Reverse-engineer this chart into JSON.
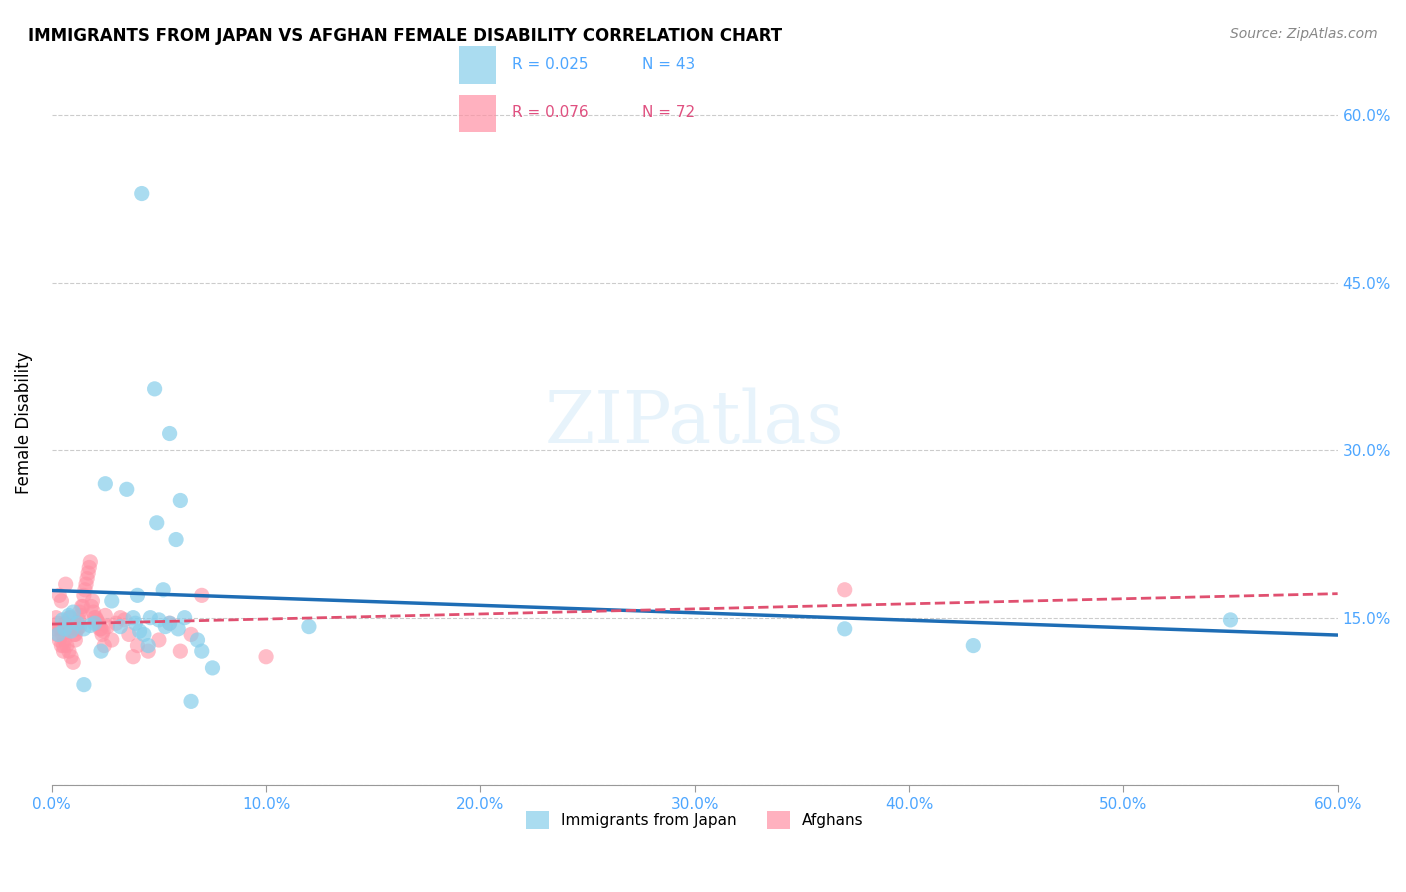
{
  "title": "IMMIGRANTS FROM JAPAN VS AFGHAN FEMALE DISABILITY CORRELATION CHART",
  "source": "Source: ZipAtlas.com",
  "xlabel_ticks": [
    "0.0%",
    "10.0%",
    "20.0%",
    "30.0%",
    "40.0%",
    "50.0%",
    "60.0%"
  ],
  "xlabel_vals": [
    0,
    10,
    20,
    30,
    40,
    50,
    60
  ],
  "ylabel": "Female Disability",
  "ylim": [
    0,
    65
  ],
  "xlim": [
    0,
    60
  ],
  "yticks": [
    0,
    15,
    30,
    45,
    60
  ],
  "ytick_labels": [
    "",
    "15.0%",
    "30.0%",
    "45.0%",
    "60.0%"
  ],
  "legend1_r": "0.025",
  "legend1_n": "43",
  "legend2_r": "0.076",
  "legend2_n": "72",
  "color_blue": "#87CEEB",
  "color_pink": "#FF91A4",
  "color_blue_line": "#1E6DB5",
  "color_pink_line": "#E05070",
  "watermark": "ZIPatlas",
  "japan_x": [
    4.2,
    4.8,
    5.5,
    6.0,
    3.5,
    4.9,
    5.8,
    2.5,
    5.2,
    4.0,
    3.8,
    5.5,
    5.9,
    4.3,
    6.8,
    1.5,
    4.5,
    5.0,
    2.8,
    3.2,
    4.1,
    5.3,
    0.5,
    0.8,
    1.0,
    1.2,
    1.5,
    0.3,
    0.6,
    0.9,
    1.8,
    2.0,
    2.3,
    6.2,
    7.0,
    7.5,
    12.0,
    37.0,
    43.0,
    55.0,
    4.6,
    3.9,
    6.5
  ],
  "japan_y": [
    53.0,
    35.5,
    31.5,
    25.5,
    26.5,
    23.5,
    22.0,
    27.0,
    17.5,
    17.0,
    15.0,
    14.5,
    14.0,
    13.5,
    13.0,
    9.0,
    12.5,
    14.8,
    16.5,
    14.2,
    13.8,
    14.2,
    14.8,
    15.2,
    15.5,
    14.5,
    14.0,
    13.5,
    14.0,
    13.8,
    14.3,
    14.5,
    12.0,
    15.0,
    12.0,
    10.5,
    14.2,
    14.0,
    12.5,
    14.8,
    15.0,
    14.5,
    7.5
  ],
  "afghan_x": [
    0.2,
    0.3,
    0.4,
    0.5,
    0.6,
    0.7,
    0.8,
    0.9,
    1.0,
    1.1,
    1.2,
    1.3,
    1.4,
    1.5,
    1.6,
    1.7,
    1.8,
    1.9,
    2.0,
    2.1,
    2.2,
    2.3,
    2.4,
    2.5,
    2.6,
    2.8,
    3.0,
    3.2,
    3.4,
    3.6,
    3.8,
    4.0,
    4.5,
    5.0,
    5.5,
    6.0,
    6.5,
    7.0,
    0.15,
    0.25,
    0.35,
    0.45,
    0.55,
    0.65,
    0.75,
    0.85,
    0.95,
    1.05,
    1.15,
    1.25,
    1.35,
    1.45,
    1.55,
    1.65,
    1.75,
    1.85,
    1.95,
    2.05,
    2.15,
    2.25,
    2.35,
    2.45,
    10.0,
    37.0,
    0.55,
    0.75,
    0.85,
    0.45,
    0.35,
    0.65,
    1.1,
    1.3
  ],
  "afghan_y": [
    15.0,
    14.5,
    14.0,
    13.5,
    13.0,
    12.5,
    12.0,
    11.5,
    11.0,
    13.5,
    14.0,
    15.5,
    16.0,
    17.0,
    18.0,
    19.0,
    20.0,
    16.5,
    15.0,
    14.8,
    14.5,
    14.0,
    13.8,
    15.2,
    14.2,
    13.0,
    14.5,
    15.0,
    14.8,
    13.5,
    11.5,
    12.5,
    12.0,
    13.0,
    14.5,
    12.0,
    13.5,
    17.0,
    14.0,
    13.5,
    13.0,
    12.5,
    12.0,
    14.5,
    13.8,
    15.0,
    14.2,
    13.5,
    14.0,
    14.8,
    15.2,
    16.0,
    17.5,
    18.5,
    19.5,
    16.0,
    15.5,
    15.0,
    14.5,
    14.0,
    13.5,
    12.5,
    11.5,
    17.5,
    12.5,
    14.0,
    15.0,
    16.5,
    17.0,
    18.0,
    13.0,
    14.2
  ]
}
